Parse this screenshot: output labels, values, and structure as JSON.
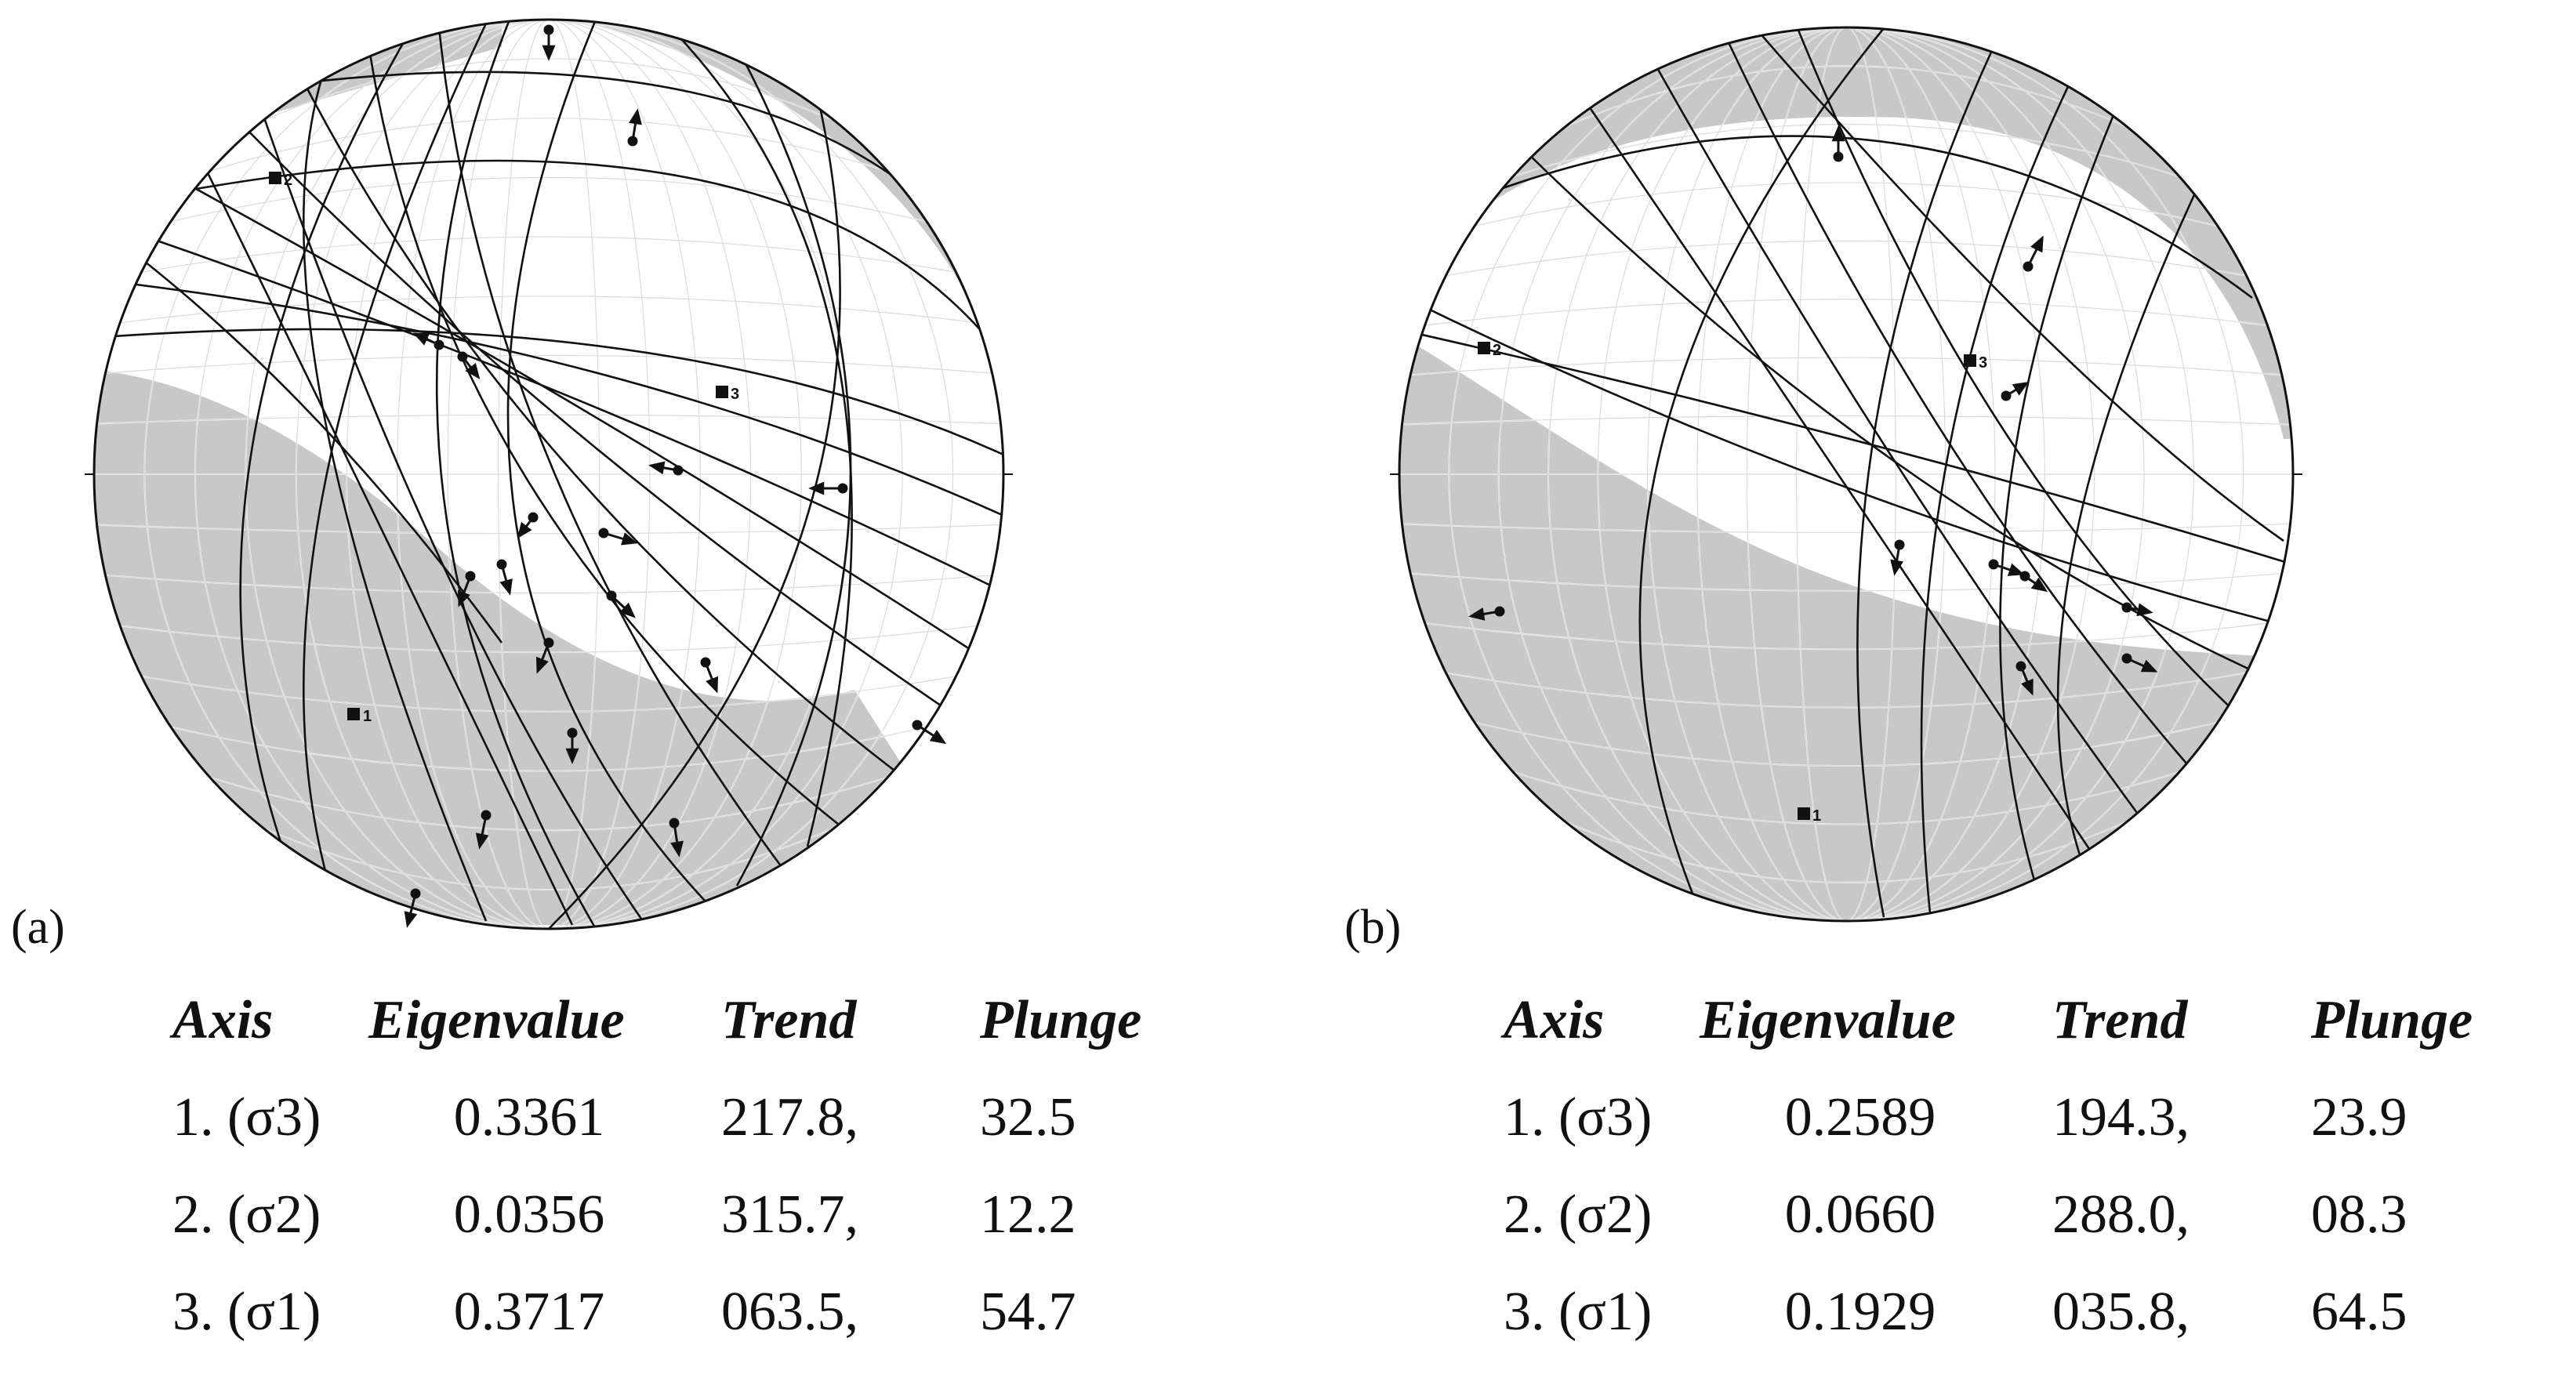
{
  "panels": [
    {
      "id": "a",
      "label": "(a)",
      "axis_markers": [
        "1",
        "2",
        "3"
      ],
      "table": {
        "headers": [
          "Axis",
          "Eigenvalue",
          "Trend",
          "Plunge"
        ],
        "rows": [
          [
            "1. (σ3)",
            "0.3361",
            "217.8,",
            "32.5"
          ],
          [
            "2. (σ2)",
            "0.0356",
            "315.7,",
            "12.2"
          ],
          [
            "3. (σ1)",
            "0.3717",
            "063.5,",
            "54.7"
          ]
        ]
      }
    },
    {
      "id": "b",
      "label": "(b)",
      "axis_markers": [
        "1",
        "2",
        "3"
      ],
      "table": {
        "headers": [
          "Axis",
          "Eigenvalue",
          "Trend",
          "Plunge"
        ],
        "rows": [
          [
            "1. (σ3)",
            "0.2589",
            "194.3,",
            "23.9"
          ],
          [
            "2. (σ2)",
            "0.0660",
            "288.0,",
            "08.3"
          ],
          [
            "3. (σ1)",
            "0.1929",
            "035.8,",
            "64.5"
          ]
        ]
      }
    }
  ],
  "colors": {
    "shade": "#c8c8c8",
    "ink": "#111111",
    "grid": "#ffffff"
  }
}
